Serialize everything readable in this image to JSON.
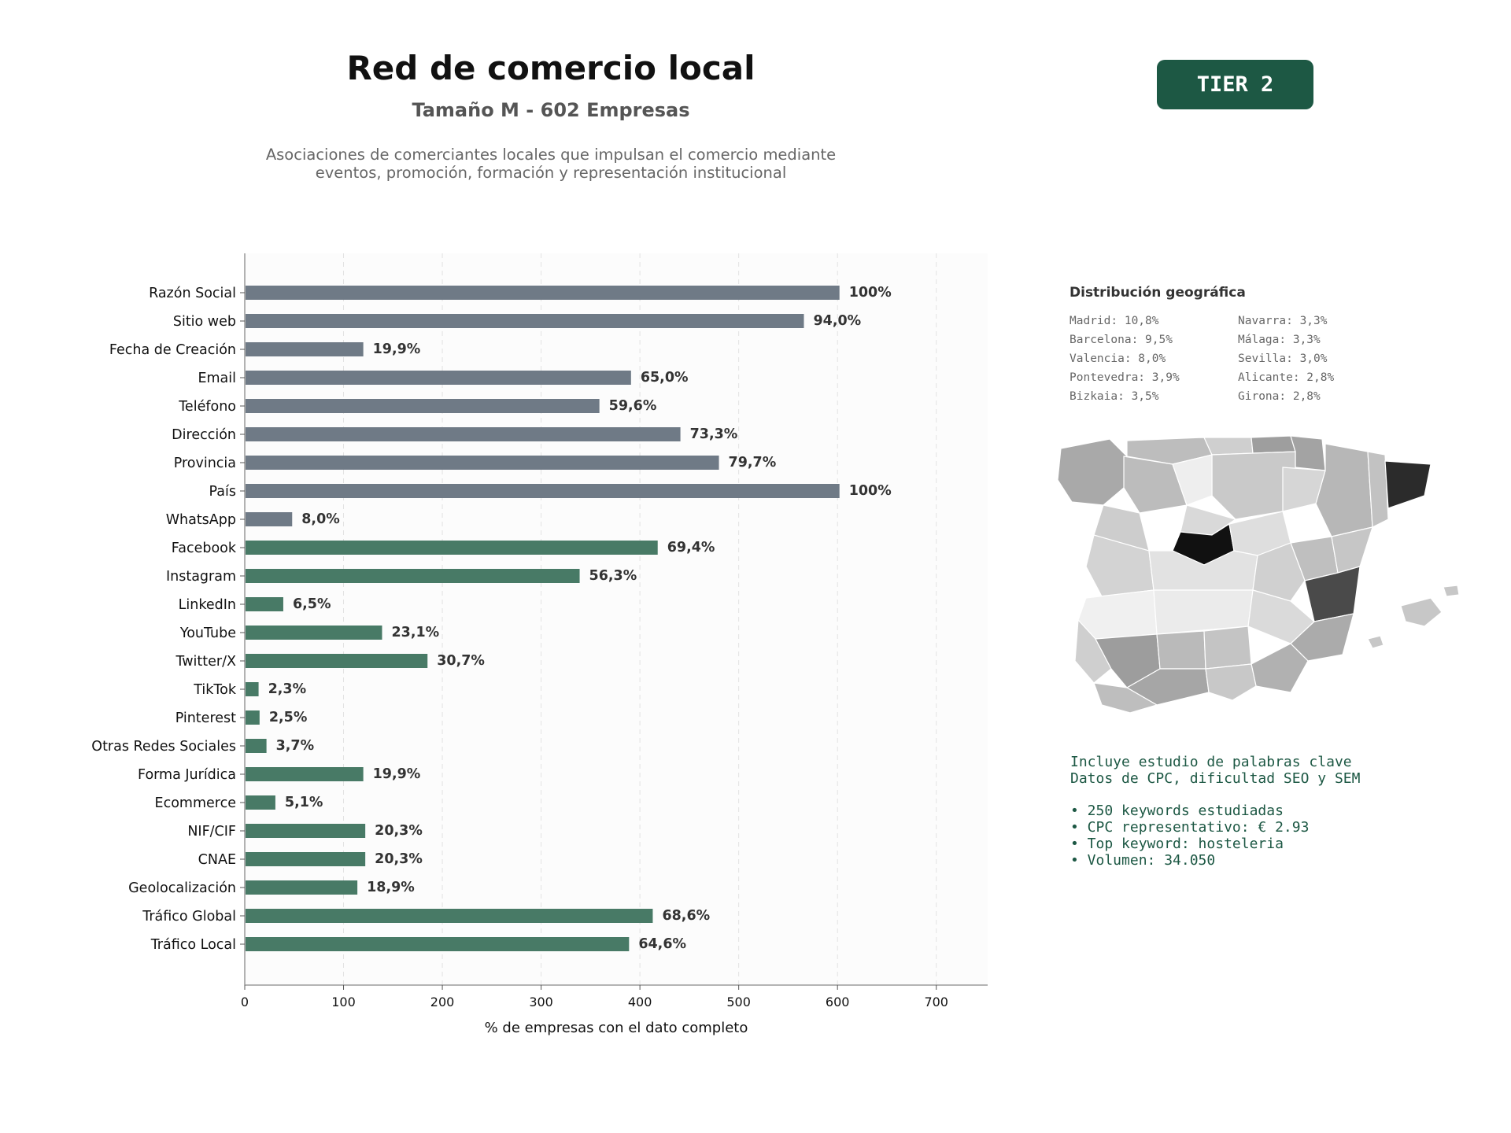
{
  "header": {
    "title": "Red de comercio local",
    "subtitle": "Tamaño M - 602 Empresas",
    "description_line1": "Asociaciones de comerciantes locales que impulsan el comercio mediante",
    "description_line2": "eventos, promoción, formación y representación institucional",
    "tier": "TIER 2"
  },
  "colors": {
    "contact_bars": "#6f7a86",
    "digital_bars": "#487a66",
    "accent": "#1d5844"
  },
  "chart_data": {
    "type": "bar",
    "orientation": "horizontal",
    "xlabel": "% de empresas con el dato completo",
    "xlim": [
      0,
      752
    ],
    "xticks": [
      0,
      100,
      200,
      300,
      400,
      500,
      600,
      700
    ],
    "grid": "vertical-dashed",
    "categories": [
      "Razón Social",
      "Sitio web",
      "Fecha de Creación",
      "Email",
      "Teléfono",
      "Dirección",
      "Provincia",
      "País",
      "WhatsApp",
      "Facebook",
      "Instagram",
      "LinkedIn",
      "YouTube",
      "Twitter/X",
      "TikTok",
      "Pinterest",
      "Otras Redes Sociales",
      "Forma Jurídica",
      "Ecommerce",
      "NIF/CIF",
      "CNAE",
      "Geolocalización",
      "Tráfico Global",
      "Tráfico Local"
    ],
    "values": [
      602,
      566,
      120,
      391,
      359,
      441,
      480,
      602,
      48,
      418,
      339,
      39,
      139,
      185,
      14,
      15,
      22,
      120,
      31,
      122,
      122,
      114,
      413,
      389
    ],
    "labels": [
      "100%",
      "94,0%",
      "19,9%",
      "65,0%",
      "59,6%",
      "73,3%",
      "79,7%",
      "100%",
      "8,0%",
      "69,4%",
      "56,3%",
      "6,5%",
      "23,1%",
      "30,7%",
      "2,3%",
      "2,5%",
      "3,7%",
      "19,9%",
      "5,1%",
      "20,3%",
      "20,3%",
      "18,9%",
      "68,6%",
      "64,6%"
    ],
    "groups": [
      "contact",
      "contact",
      "contact",
      "contact",
      "contact",
      "contact",
      "contact",
      "contact",
      "contact",
      "digital",
      "digital",
      "digital",
      "digital",
      "digital",
      "digital",
      "digital",
      "digital",
      "digital",
      "digital",
      "digital",
      "digital",
      "digital",
      "digital",
      "digital"
    ]
  },
  "geo": {
    "title": "Distribución geográfica",
    "items": [
      "Madrid: 10,8%",
      "Navarra: 3,3%",
      "Barcelona: 9,5%",
      "Málaga: 3,3%",
      "Valencia: 8,0%",
      "Sevilla: 3,0%",
      "Pontevedra: 3,9%",
      "Alicante: 2,8%",
      "Bizkaia: 3,5%",
      "Girona: 2,8%"
    ]
  },
  "keywords": {
    "line1": "Incluye estudio de palabras clave",
    "line2": "Datos de CPC, dificultad SEO y SEM",
    "bullets": [
      "• 250 keywords estudiadas",
      "• CPC representativo: € 2.93",
      "• Top keyword: hosteleria",
      "• Volumen: 34.050"
    ]
  }
}
